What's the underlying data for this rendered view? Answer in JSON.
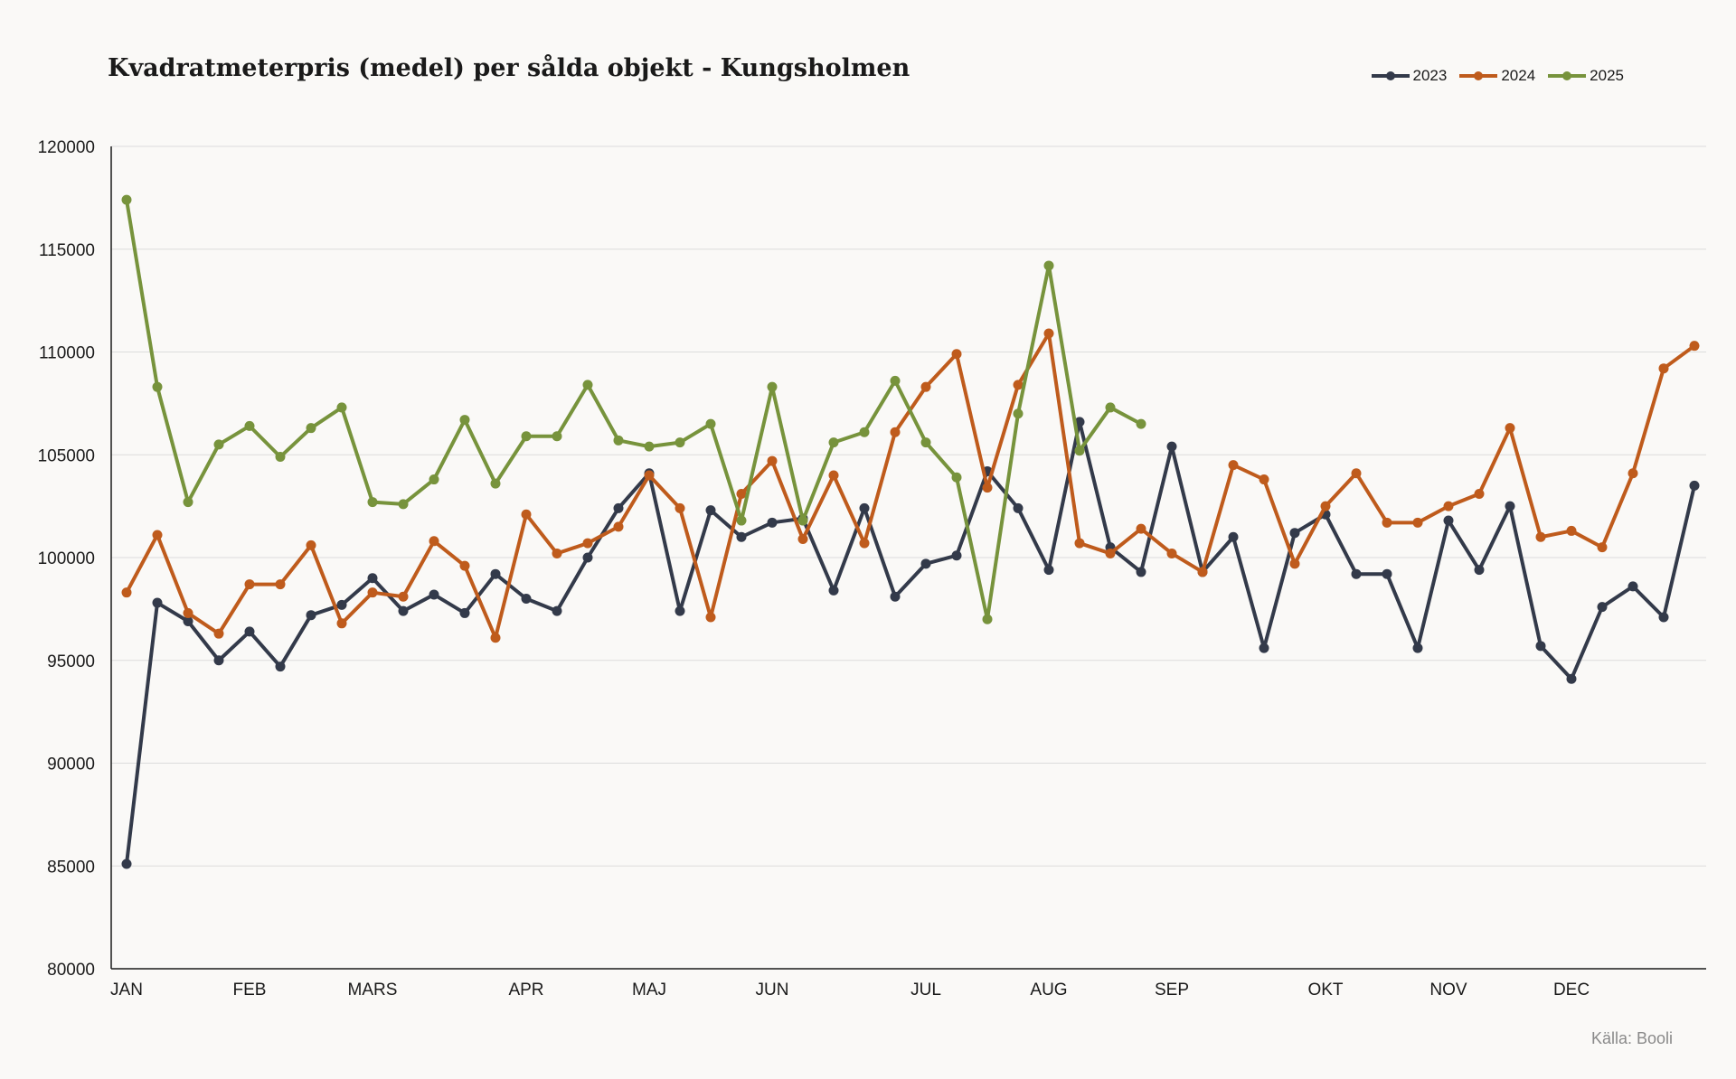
{
  "chart_data": {
    "type": "line",
    "title": "Kvadratmeterpris (medel) per sålda objekt - Kungsholmen",
    "xlabel": "",
    "ylabel": "",
    "ylim": [
      80000,
      120000
    ],
    "y_ticks": [
      "120000",
      "115000",
      "110000",
      "105000",
      "100000",
      "95000",
      "90000",
      "85000",
      "80000"
    ],
    "x_month_labels": [
      {
        "label": "JAN",
        "index": 0
      },
      {
        "label": "FEB",
        "index": 4
      },
      {
        "label": "MARS",
        "index": 8
      },
      {
        "label": "APR",
        "index": 13
      },
      {
        "label": "MAJ",
        "index": 17
      },
      {
        "label": "JUN",
        "index": 21
      },
      {
        "label": "JUL",
        "index": 26
      },
      {
        "label": "AUG",
        "index": 30
      },
      {
        "label": "SEP",
        "index": 34
      },
      {
        "label": "OKT",
        "index": 39
      },
      {
        "label": "NOV",
        "index": 43
      },
      {
        "label": "DEC",
        "index": 47
      }
    ],
    "grid": true,
    "legend_position": "top-right",
    "series": [
      {
        "name": "2023",
        "color": "#333a4a",
        "values": [
          85100,
          97800,
          96900,
          95000,
          96400,
          94700,
          97200,
          97700,
          99000,
          97400,
          98200,
          97300,
          99200,
          98000,
          97400,
          100000,
          102400,
          104100,
          97400,
          102300,
          101000,
          101700,
          101900,
          98400,
          102400,
          98100,
          99700,
          100100,
          104200,
          102400,
          99400,
          106600,
          100500,
          99300,
          105400,
          99300,
          101000,
          95600,
          101200,
          102100,
          99200,
          99200,
          95600,
          101800,
          99400,
          102500,
          95700,
          94100,
          97600,
          98600,
          97100,
          103500
        ]
      },
      {
        "name": "2024",
        "color": "#bf5b1c",
        "values": [
          98300,
          101100,
          97300,
          96300,
          98700,
          98700,
          100600,
          96800,
          98300,
          98100,
          100800,
          99600,
          96100,
          102100,
          100200,
          100700,
          101500,
          104000,
          102400,
          97100,
          103100,
          104700,
          100900,
          104000,
          100700,
          106100,
          108300,
          109900,
          103400,
          108400,
          110900,
          100700,
          100200,
          101400,
          100200,
          99300,
          104500,
          103800,
          99700,
          102500,
          104100,
          101700,
          101700,
          102500,
          103100,
          106300,
          101000,
          101300,
          100500,
          104100,
          109200,
          110300
        ]
      },
      {
        "name": "2025",
        "color": "#77933c",
        "values": [
          117400,
          108300,
          102700,
          105500,
          106400,
          104900,
          106300,
          107300,
          102700,
          102600,
          103800,
          106700,
          103600,
          105900,
          105900,
          108400,
          105700,
          105400,
          105600,
          106500,
          101800,
          108300,
          101800,
          105600,
          106100,
          108600,
          105600,
          103900,
          97000,
          107000,
          114200,
          105200,
          107300,
          106500
        ]
      }
    ],
    "source": "Källa: Booli"
  }
}
